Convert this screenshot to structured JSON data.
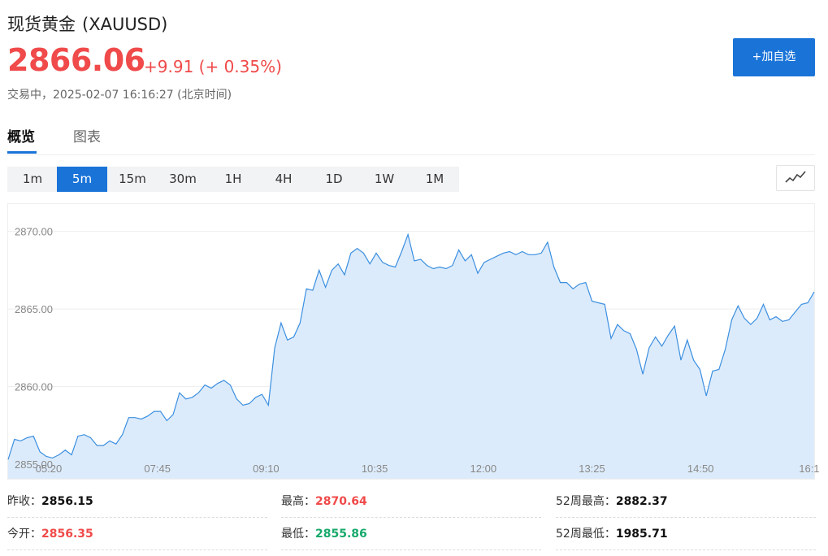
{
  "header": {
    "name": "现货黄金",
    "symbol": "(XAUUSD)",
    "price": "2866.06",
    "change": "+9.91",
    "change_pct": "(+ 0.35%)",
    "status": "交易中",
    "timestamp": "2025-02-07 16:16:27",
    "timezone": "(北京时间)",
    "add_button": "+加自选"
  },
  "tabs": [
    {
      "label": "概览",
      "active": true
    },
    {
      "label": "图表",
      "active": false
    }
  ],
  "periods": [
    {
      "label": "1m",
      "active": false
    },
    {
      "label": "5m",
      "active": true
    },
    {
      "label": "15m",
      "active": false
    },
    {
      "label": "30m",
      "active": false
    },
    {
      "label": "1H",
      "active": false
    },
    {
      "label": "4H",
      "active": false
    },
    {
      "label": "1D",
      "active": false
    },
    {
      "label": "1W",
      "active": false
    },
    {
      "label": "1M",
      "active": false
    }
  ],
  "chart_type_icon": "line-chart-icon",
  "colors": {
    "up": "#f04a4a",
    "down": "#17a96b",
    "accent": "#1a74d8",
    "line": "#3b8fe0",
    "area": "#dcebfb"
  },
  "chart_data": {
    "type": "area",
    "title": "",
    "xlabel": "",
    "ylabel": "",
    "ylim": [
      2855.0,
      2871.5
    ],
    "y_ticks": [
      "2870.00",
      "2865.00",
      "2860.00",
      "2855.00"
    ],
    "x_ticks": [
      "05:20",
      "07:45",
      "09:10",
      "10:35",
      "12:00",
      "13:25",
      "14:50",
      "16:1"
    ],
    "values": [
      2855.3,
      2856.6,
      2856.5,
      2856.7,
      2856.8,
      2855.8,
      2855.5,
      2855.4,
      2855.6,
      2855.9,
      2855.6,
      2856.8,
      2856.9,
      2856.7,
      2856.2,
      2856.2,
      2856.5,
      2856.3,
      2856.9,
      2858.0,
      2858.0,
      2857.9,
      2858.1,
      2858.4,
      2858.4,
      2857.8,
      2858.2,
      2859.6,
      2859.2,
      2859.3,
      2859.6,
      2860.1,
      2859.9,
      2860.2,
      2860.4,
      2860.1,
      2859.2,
      2858.8,
      2858.9,
      2859.3,
      2859.5,
      2858.8,
      2862.5,
      2864.1,
      2863.0,
      2863.2,
      2864.1,
      2866.3,
      2866.2,
      2867.5,
      2866.4,
      2867.5,
      2867.9,
      2867.2,
      2868.6,
      2868.9,
      2868.6,
      2867.9,
      2868.6,
      2868.0,
      2867.8,
      2867.7,
      2868.7,
      2869.8,
      2868.1,
      2868.2,
      2867.8,
      2867.6,
      2867.7,
      2867.6,
      2867.8,
      2868.8,
      2868.1,
      2868.5,
      2867.3,
      2868.0,
      2868.2,
      2868.4,
      2868.6,
      2868.7,
      2868.5,
      2868.7,
      2868.5,
      2868.5,
      2868.6,
      2869.3,
      2867.7,
      2866.7,
      2866.7,
      2866.3,
      2866.6,
      2866.7,
      2865.5,
      2865.4,
      2865.3,
      2863.1,
      2864.0,
      2863.6,
      2863.4,
      2862.4,
      2860.8,
      2862.5,
      2863.2,
      2862.6,
      2863.3,
      2863.9,
      2861.7,
      2863.0,
      2861.7,
      2861.1,
      2859.4,
      2861.0,
      2861.1,
      2862.4,
      2864.3,
      2865.2,
      2864.4,
      2864.0,
      2864.4,
      2865.3,
      2864.3,
      2864.5,
      2864.2,
      2864.3,
      2864.8,
      2865.3,
      2865.4,
      2866.1
    ]
  },
  "stats": [
    {
      "label": "昨收：",
      "value": "2856.15",
      "color": "normal"
    },
    {
      "label": "最高：",
      "value": "2870.64",
      "color": "red"
    },
    {
      "label": "52周最高：",
      "value": "2882.37",
      "color": "normal"
    },
    {
      "label": "今开：",
      "value": "2856.35",
      "color": "red"
    },
    {
      "label": "最低：",
      "value": "2855.86",
      "color": "green"
    },
    {
      "label": "52周最低：",
      "value": "1985.71",
      "color": "normal"
    }
  ]
}
